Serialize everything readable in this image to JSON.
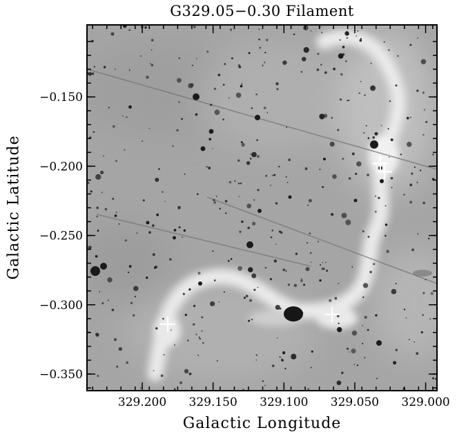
{
  "title": "G329.05−0.30 Filament",
  "xlabel": "Galactic Longitude",
  "ylabel": "Galactic Latitude",
  "x_ticks": [
    "329.200",
    "329.150",
    "329.100",
    "329.050",
    "329.000"
  ],
  "y_ticks": [
    "−0.150",
    "−0.200",
    "−0.250",
    "−0.300",
    "−0.350"
  ],
  "x_tick_values": [
    329.2,
    329.15,
    329.1,
    329.05,
    329.0
  ],
  "y_tick_values": [
    -0.15,
    -0.2,
    -0.25,
    -0.3,
    -0.35
  ],
  "xlim": [
    329.239,
    328.992
  ],
  "ylim": [
    -0.362,
    -0.098
  ],
  "image_colormap": "grayscale",
  "markers": [
    {
      "type": "cross",
      "l": 329.032,
      "b": -0.198
    },
    {
      "type": "cross",
      "l": 329.029,
      "b": -0.204
    },
    {
      "type": "cross",
      "l": 329.182,
      "b": -0.314
    },
    {
      "type": "cross",
      "l": 329.066,
      "b": -0.307
    }
  ]
}
